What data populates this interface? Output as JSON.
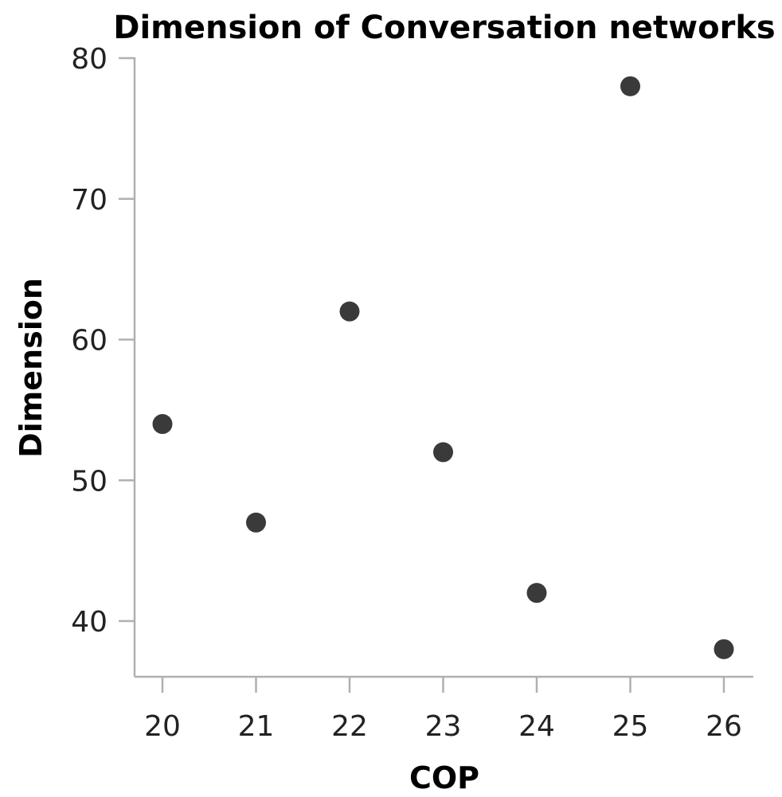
{
  "chart_data": {
    "type": "scatter",
    "title": "Dimension of Conversation networks",
    "xlabel": "COP",
    "ylabel": "Dimension",
    "x": [
      20,
      21,
      22,
      23,
      24,
      25,
      26
    ],
    "y": [
      54,
      47,
      62,
      52,
      42,
      78,
      38
    ],
    "x_ticks": [
      "20",
      "21",
      "22",
      "23",
      "24",
      "25",
      "26"
    ],
    "y_ticks": [
      "40",
      "50",
      "60",
      "70",
      "80"
    ],
    "xlim": [
      19.7,
      26.3
    ],
    "ylim": [
      36,
      80
    ],
    "grid": false,
    "point_color": "#3a3a3a",
    "axis_color": "#b0b0b0"
  }
}
